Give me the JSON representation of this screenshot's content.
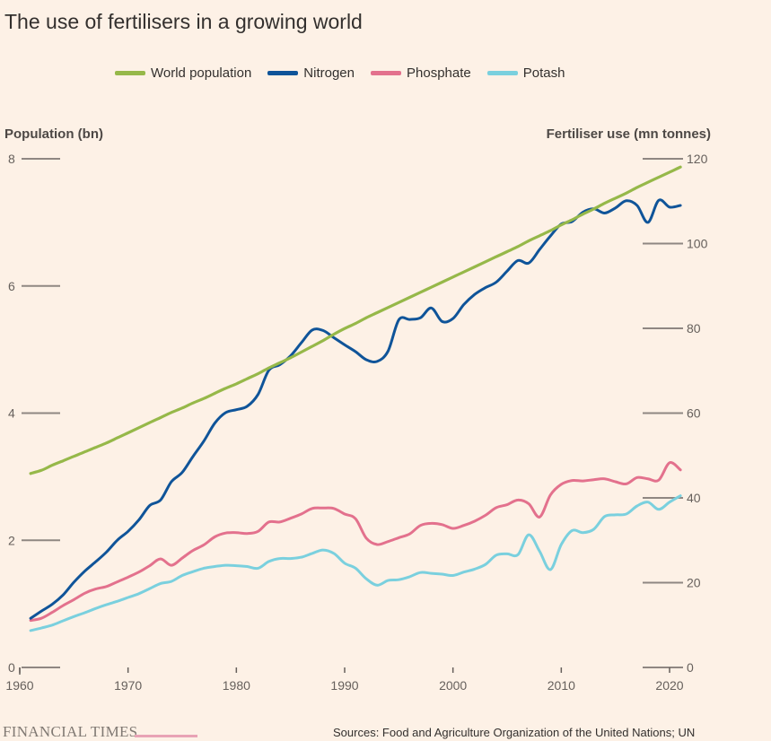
{
  "title": "The use of fertilisers in a growing world",
  "footer": {
    "logo": "FINANCIAL TIMES",
    "source": "Sources: Food and Agriculture Organization of the United Nations; UN"
  },
  "chart_data": {
    "type": "line",
    "title": "The use of fertilisers in a growing world",
    "y_left_label": "Population (bn)",
    "y_right_label": "Fertiliser use (mn tonnes)",
    "xlim": [
      1961,
      2021
    ],
    "ylim_left": [
      0,
      8
    ],
    "ylim_right": [
      0,
      120
    ],
    "x_ticks": [
      "1960",
      "1970",
      "1980",
      "1990",
      "2000",
      "2010",
      "2020"
    ],
    "y_left_ticks": [
      "0",
      "2",
      "4",
      "6",
      "8"
    ],
    "y_right_ticks": [
      "0",
      "20",
      "40",
      "60",
      "80",
      "100",
      "120"
    ],
    "legend_position": "top",
    "series": [
      {
        "name": "World population",
        "axis": "left",
        "color": "#96b849",
        "x": [
          1961,
          1962,
          1963,
          1964,
          1965,
          1966,
          1967,
          1968,
          1969,
          1970,
          1971,
          1972,
          1973,
          1974,
          1975,
          1976,
          1977,
          1978,
          1979,
          1980,
          1981,
          1982,
          1983,
          1984,
          1985,
          1986,
          1987,
          1988,
          1989,
          1990,
          1991,
          1992,
          1993,
          1994,
          1995,
          1996,
          1997,
          1998,
          1999,
          2000,
          2001,
          2002,
          2003,
          2004,
          2005,
          2006,
          2007,
          2008,
          2009,
          2010,
          2011,
          2012,
          2013,
          2014,
          2015,
          2016,
          2017,
          2018,
          2019,
          2020,
          2021
        ],
        "values": [
          3.05,
          3.1,
          3.18,
          3.25,
          3.32,
          3.39,
          3.46,
          3.53,
          3.61,
          3.69,
          3.77,
          3.85,
          3.93,
          4.01,
          4.08,
          4.16,
          4.23,
          4.31,
          4.39,
          4.46,
          4.54,
          4.62,
          4.71,
          4.79,
          4.87,
          4.96,
          5.05,
          5.14,
          5.24,
          5.33,
          5.41,
          5.5,
          5.58,
          5.66,
          5.74,
          5.82,
          5.9,
          5.98,
          6.06,
          6.14,
          6.22,
          6.3,
          6.38,
          6.46,
          6.54,
          6.62,
          6.71,
          6.79,
          6.87,
          6.96,
          7.04,
          7.13,
          7.21,
          7.3,
          7.38,
          7.46,
          7.55,
          7.63,
          7.71,
          7.79,
          7.87
        ]
      },
      {
        "name": "Nitrogen",
        "axis": "right",
        "color": "#0f5499",
        "x": [
          1961,
          1962,
          1963,
          1964,
          1965,
          1966,
          1967,
          1968,
          1969,
          1970,
          1971,
          1972,
          1973,
          1974,
          1975,
          1976,
          1977,
          1978,
          1979,
          1980,
          1981,
          1982,
          1983,
          1984,
          1985,
          1986,
          1987,
          1988,
          1989,
          1990,
          1991,
          1992,
          1993,
          1994,
          1995,
          1996,
          1997,
          1998,
          1999,
          2000,
          2001,
          2002,
          2003,
          2004,
          2005,
          2006,
          2007,
          2008,
          2009,
          2010,
          2011,
          2012,
          2013,
          2014,
          2015,
          2016,
          2017,
          2018,
          2019,
          2020,
          2021
        ],
        "values": [
          11.6,
          13.3,
          14.9,
          17.1,
          20.1,
          22.7,
          24.9,
          27.2,
          30.0,
          32.1,
          34.8,
          38.2,
          39.5,
          43.8,
          46.0,
          49.8,
          53.4,
          57.6,
          60.1,
          60.8,
          61.6,
          64.4,
          70.1,
          71.4,
          73.5,
          76.6,
          79.6,
          79.5,
          77.8,
          76.1,
          74.5,
          72.6,
          72.2,
          74.6,
          82.0,
          82.1,
          82.5,
          84.8,
          81.6,
          82.3,
          85.6,
          88.0,
          89.6,
          90.9,
          93.5,
          96.0,
          95.4,
          98.6,
          101.8,
          104.6,
          105.2,
          107.4,
          108.2,
          107.2,
          108.4,
          110.1,
          109.0,
          105.0,
          110.2,
          108.6,
          109.0
        ]
      },
      {
        "name": "Phosphate",
        "axis": "right",
        "color": "#e3718d",
        "x": [
          1961,
          1962,
          1963,
          1964,
          1965,
          1966,
          1967,
          1968,
          1969,
          1970,
          1971,
          1972,
          1973,
          1974,
          1975,
          1976,
          1977,
          1978,
          1979,
          1980,
          1981,
          1982,
          1983,
          1984,
          1985,
          1986,
          1987,
          1988,
          1989,
          1990,
          1991,
          1992,
          1993,
          1994,
          1995,
          1996,
          1997,
          1998,
          1999,
          2000,
          2001,
          2002,
          2003,
          2004,
          2005,
          2006,
          2007,
          2008,
          2009,
          2010,
          2011,
          2012,
          2013,
          2014,
          2015,
          2016,
          2017,
          2018,
          2019,
          2020,
          2021
        ],
        "values": [
          11.1,
          11.6,
          13.0,
          14.6,
          16.0,
          17.5,
          18.5,
          19.1,
          20.2,
          21.3,
          22.5,
          24.0,
          25.6,
          24.1,
          25.8,
          27.6,
          28.9,
          30.8,
          31.7,
          31.8,
          31.6,
          32.1,
          34.3,
          34.3,
          35.2,
          36.2,
          37.5,
          37.6,
          37.5,
          36.2,
          35.1,
          30.5,
          29.0,
          29.7,
          30.6,
          31.5,
          33.5,
          34.0,
          33.7,
          32.8,
          33.5,
          34.5,
          35.9,
          37.7,
          38.4,
          39.5,
          38.6,
          35.5,
          40.7,
          43.2,
          44.1,
          44.0,
          44.3,
          44.5,
          43.8,
          43.3,
          44.8,
          44.5,
          44.2,
          48.3,
          46.6
        ]
      },
      {
        "name": "Potash",
        "axis": "right",
        "color": "#7ad0de",
        "x": [
          1961,
          1962,
          1963,
          1964,
          1965,
          1966,
          1967,
          1968,
          1969,
          1970,
          1971,
          1972,
          1973,
          1974,
          1975,
          1976,
          1977,
          1978,
          1979,
          1980,
          1981,
          1982,
          1983,
          1984,
          1985,
          1986,
          1987,
          1988,
          1989,
          1990,
          1991,
          1992,
          1993,
          1994,
          1995,
          1996,
          1997,
          1998,
          1999,
          2000,
          2001,
          2002,
          2003,
          2004,
          2005,
          2006,
          2007,
          2008,
          2009,
          2010,
          2011,
          2012,
          2013,
          2014,
          2015,
          2016,
          2017,
          2018,
          2019,
          2020,
          2021
        ],
        "values": [
          8.7,
          9.3,
          10.0,
          11.0,
          12.0,
          12.9,
          13.9,
          14.8,
          15.6,
          16.5,
          17.4,
          18.6,
          19.8,
          20.3,
          21.7,
          22.6,
          23.4,
          23.8,
          24.1,
          24.0,
          23.8,
          23.4,
          25.0,
          25.7,
          25.7,
          26.0,
          26.9,
          27.7,
          26.9,
          24.6,
          23.4,
          20.9,
          19.4,
          20.5,
          20.7,
          21.4,
          22.4,
          22.2,
          22.0,
          21.7,
          22.5,
          23.2,
          24.3,
          26.5,
          26.8,
          26.6,
          31.3,
          27.4,
          23.1,
          29.0,
          32.3,
          31.8,
          32.6,
          35.6,
          36.0,
          36.2,
          38.1,
          39.0,
          37.3,
          39.0,
          40.5
        ]
      }
    ]
  }
}
